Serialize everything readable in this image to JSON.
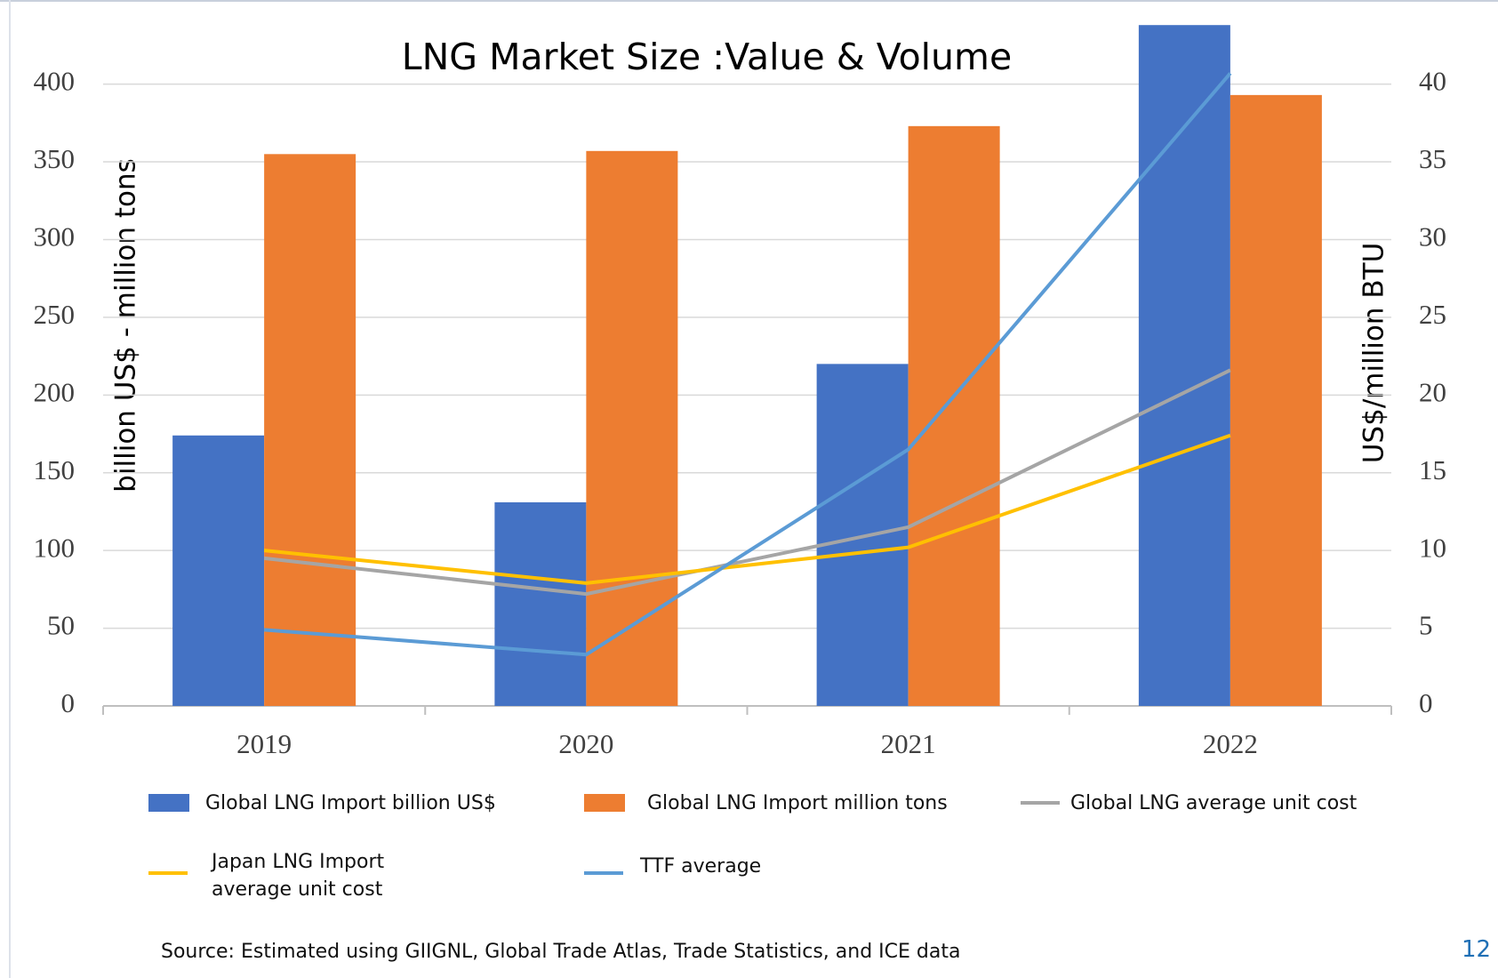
{
  "chart_data": {
    "type": "bar_line",
    "title": "LNG Market Size :Value & Volume",
    "y_label": "billion US$ - million tons",
    "y2_label": "US$/million BTU",
    "categories": [
      "2019",
      "2020",
      "2021",
      "2022"
    ],
    "ylim": [
      0,
      440
    ],
    "yticks": [
      0,
      50,
      100,
      150,
      200,
      250,
      300,
      350,
      400
    ],
    "y2lim": [
      0,
      44
    ],
    "y2ticks": [
      0,
      5,
      10,
      15,
      20,
      25,
      30,
      35,
      40
    ],
    "grid": true,
    "series": [
      {
        "name": "Global LNG Import billion US$",
        "type": "bar",
        "color": "#4472c4",
        "values": [
          174,
          131,
          220,
          438
        ]
      },
      {
        "name": "Global LNG Import million tons",
        "type": "bar",
        "color": "#ed7d31",
        "values": [
          355,
          357,
          373,
          393
        ]
      },
      {
        "name": "Global LNG average unit cost",
        "type": "line",
        "axis": "y2",
        "color": "#a5a5a5",
        "values": [
          9.5,
          7.2,
          11.5,
          21.6
        ]
      },
      {
        "name": "Japan LNG Import average unit cost",
        "type": "line",
        "axis": "y2",
        "color": "#ffc000",
        "values": [
          10.0,
          7.9,
          10.2,
          17.4
        ]
      },
      {
        "name": "TTF average",
        "type": "line",
        "axis": "y2",
        "color": "#5b9bd5",
        "values": [
          4.9,
          3.3,
          16.5,
          40.7
        ]
      }
    ]
  },
  "source": "Source: Estimated using GIIGNL, Global Trade Atlas, Trade Statistics, and ICE data",
  "page_number": "12"
}
